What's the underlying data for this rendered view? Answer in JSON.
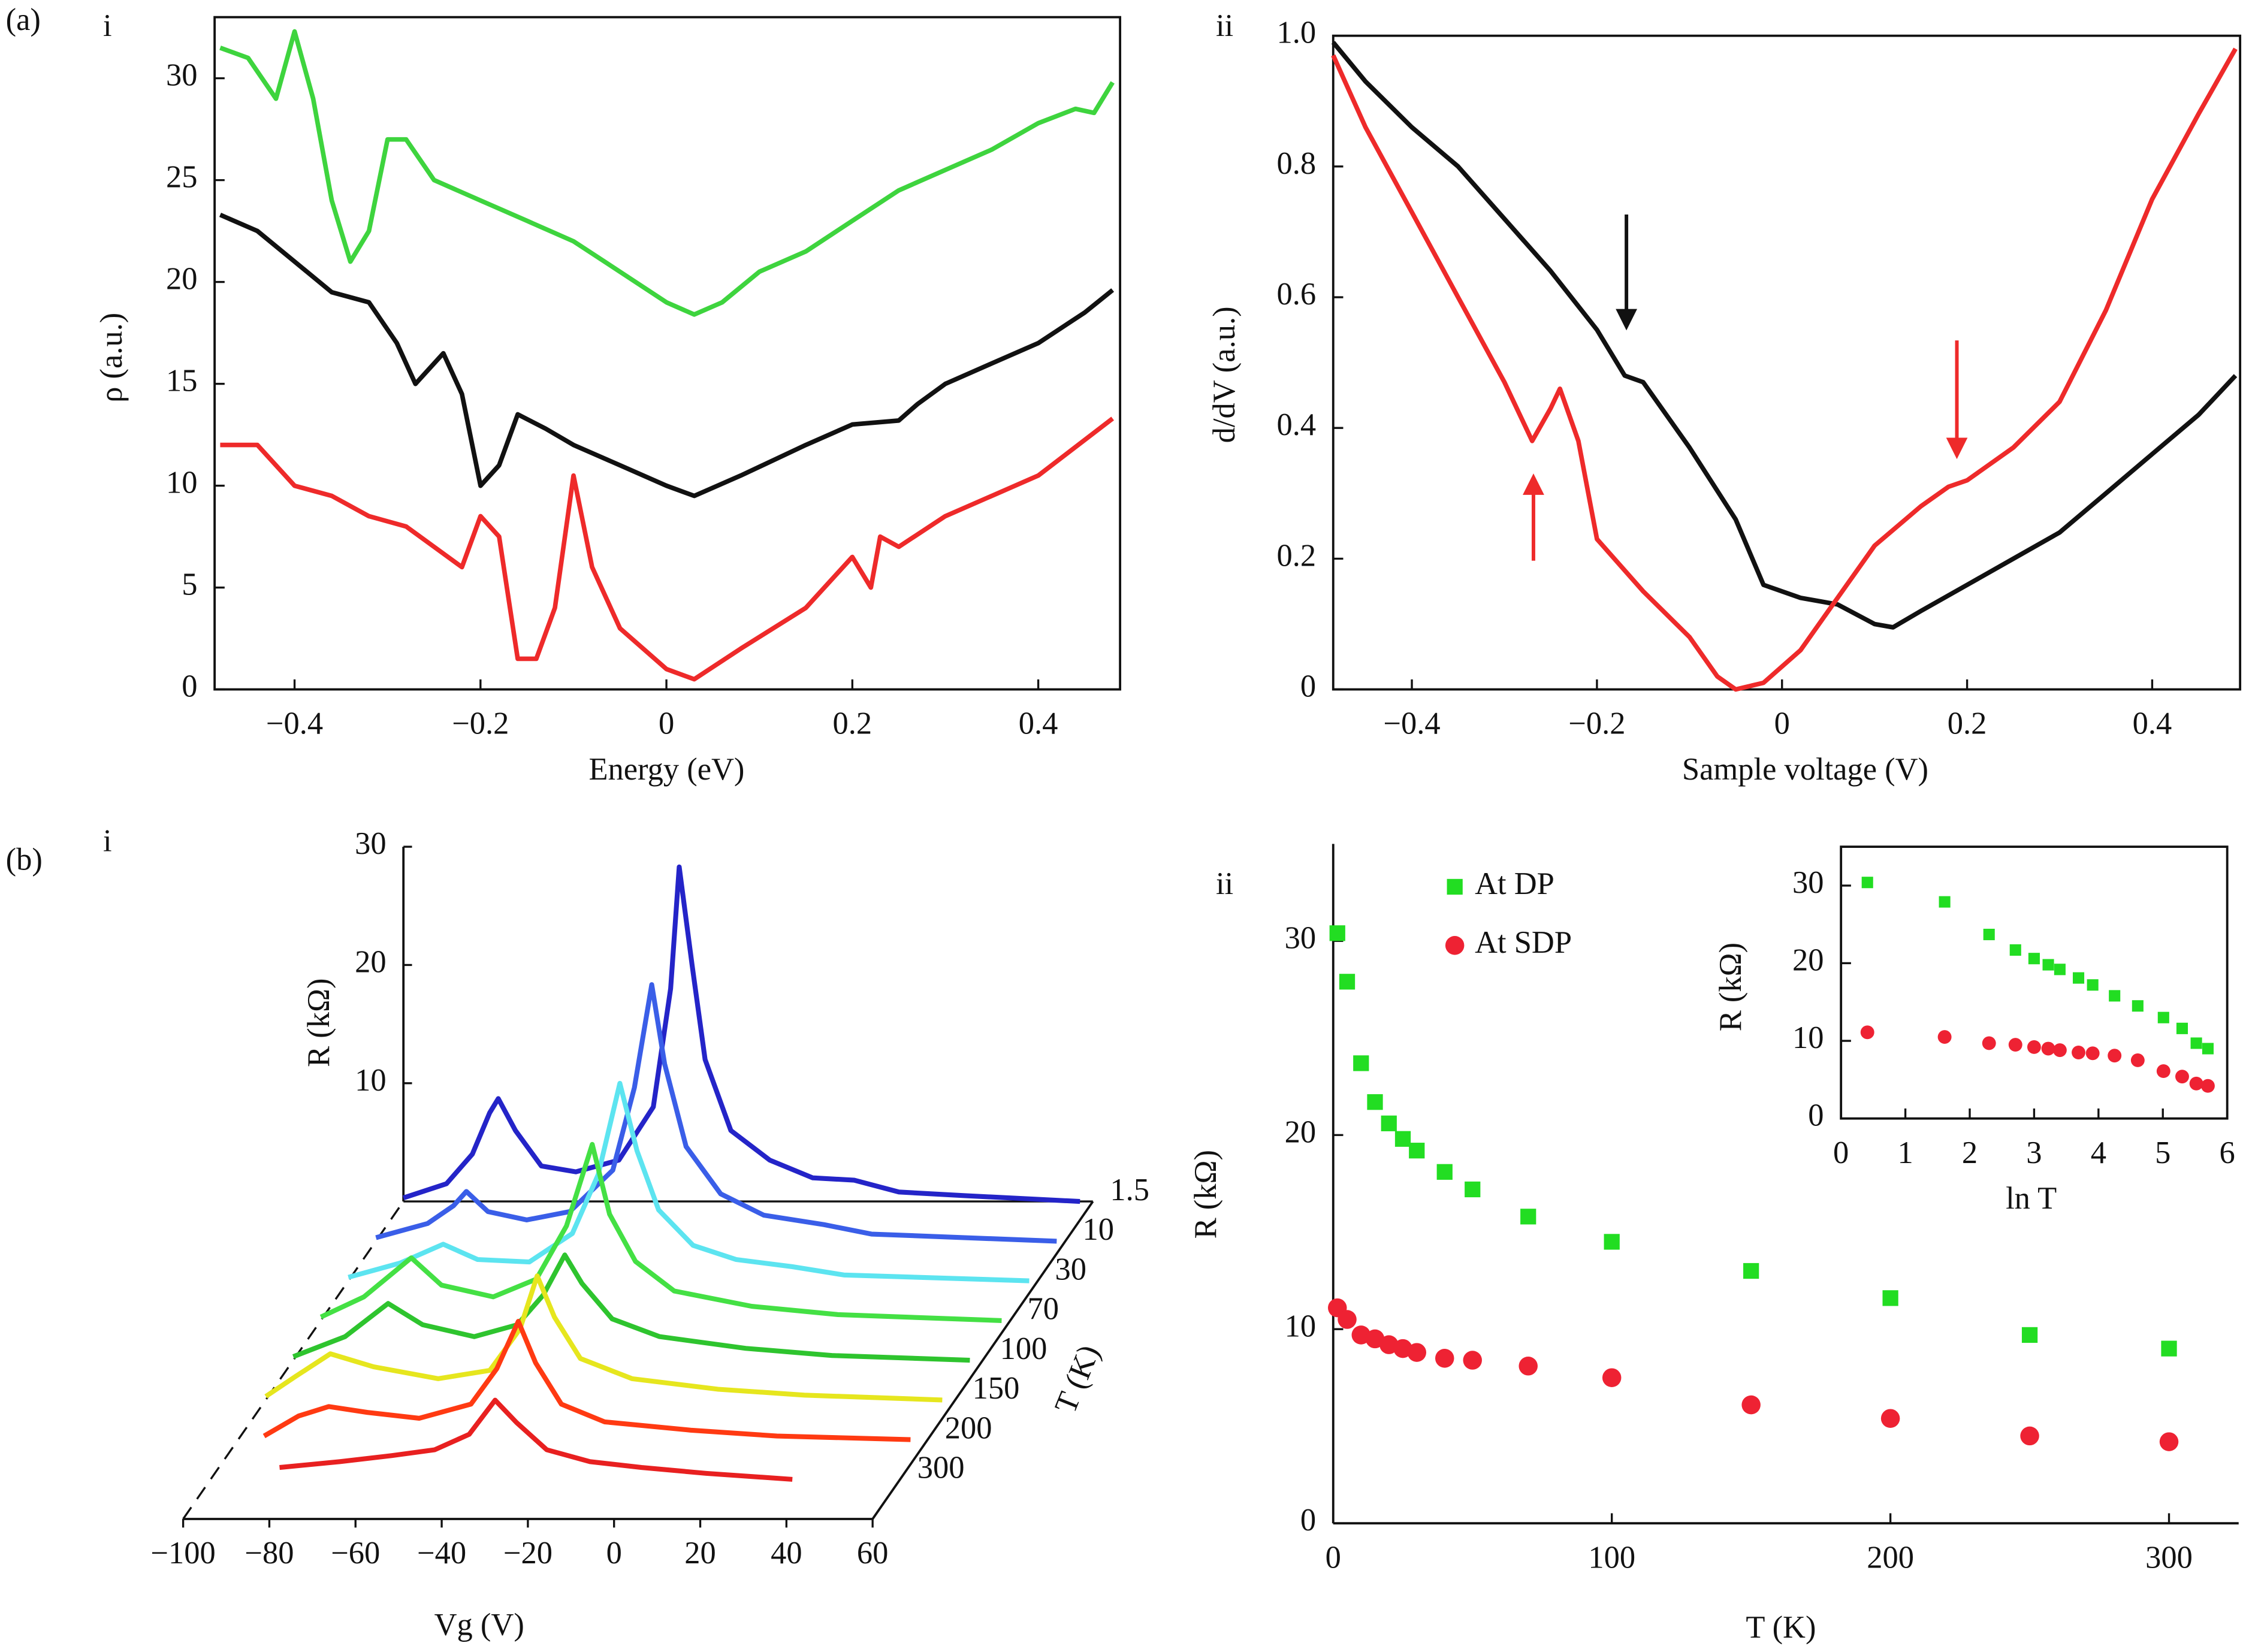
{
  "chart_data": [
    {
      "type": "line",
      "group": "(a)",
      "panel": "i",
      "xlabel": "Energy (eV)",
      "ylabel": "ρ (a.u.)",
      "frame": "box",
      "xlim": [
        -0.486,
        0.488
      ],
      "ylim": [
        0,
        33
      ],
      "xticks": [
        {
          "value": -0.4,
          "label": "−0.4"
        },
        {
          "value": -0.2,
          "label": "−0.2"
        },
        0,
        0.2,
        0.4
      ],
      "yticks": [
        0,
        5,
        10,
        15,
        20,
        25,
        30
      ],
      "series": [
        {
          "color": "#3ed43e",
          "x": [
            -0.48,
            -0.45,
            -0.42,
            -0.4,
            -0.38,
            -0.36,
            -0.34,
            -0.32,
            -0.3,
            -0.28,
            -0.25,
            -0.2,
            -0.15,
            -0.1,
            -0.05,
            0,
            0.03,
            0.06,
            0.1,
            0.15,
            0.2,
            0.25,
            0.3,
            0.35,
            0.4,
            0.44,
            0.46,
            0.48
          ],
          "values": [
            31.5,
            31,
            29,
            32.3,
            29,
            24,
            21,
            22.5,
            27,
            27,
            25,
            24,
            23,
            22,
            20.5,
            19,
            18.4,
            19,
            20.5,
            21.5,
            23,
            24.5,
            25.5,
            26.5,
            27.8,
            28.5,
            28.3,
            29.8
          ]
        },
        {
          "color": "#111111",
          "x": [
            -0.48,
            -0.44,
            -0.4,
            -0.36,
            -0.32,
            -0.29,
            -0.27,
            -0.24,
            -0.22,
            -0.2,
            -0.18,
            -0.16,
            -0.13,
            -0.1,
            -0.05,
            0,
            0.03,
            0.08,
            0.15,
            0.2,
            0.25,
            0.27,
            0.3,
            0.35,
            0.4,
            0.45,
            0.48
          ],
          "values": [
            23.3,
            22.5,
            21,
            19.5,
            19,
            17,
            15,
            16.5,
            14.5,
            10,
            11,
            13.5,
            12.8,
            12,
            11,
            10,
            9.5,
            10.5,
            12,
            13,
            13.2,
            14,
            15,
            16,
            17,
            18.5,
            19.6
          ]
        },
        {
          "color": "#ee2a2a",
          "x": [
            -0.48,
            -0.44,
            -0.4,
            -0.36,
            -0.32,
            -0.28,
            -0.25,
            -0.22,
            -0.2,
            -0.18,
            -0.16,
            -0.14,
            -0.12,
            -0.1,
            -0.08,
            -0.05,
            0,
            0.03,
            0.08,
            0.15,
            0.2,
            0.22,
            0.23,
            0.25,
            0.3,
            0.35,
            0.4,
            0.48
          ],
          "values": [
            12,
            12,
            10,
            9.5,
            8.5,
            8,
            7,
            6,
            8.5,
            7.5,
            1.5,
            1.5,
            4,
            10.5,
            6,
            3,
            1,
            0.5,
            2,
            4,
            6.5,
            5,
            7.5,
            7,
            8.5,
            9.5,
            10.5,
            13.3
          ]
        }
      ]
    },
    {
      "type": "line",
      "panel": "ii",
      "xlabel": "Sample voltage (V)",
      "ylabel": "d/dV (a.u.)",
      "frame": "box",
      "xlim": [
        -0.485,
        0.495
      ],
      "ylim": [
        0,
        1
      ],
      "xticks": [
        {
          "value": -0.4,
          "label": "−0.4"
        },
        {
          "value": -0.2,
          "label": "−0.2"
        },
        0,
        0.2,
        0.4
      ],
      "yticks": [
        0,
        0.2,
        0.4,
        0.6,
        0.8,
        {
          "value": 1,
          "label": "1.0"
        }
      ],
      "series": [
        {
          "color": "#111111",
          "x": [
            -0.485,
            -0.45,
            -0.4,
            -0.35,
            -0.3,
            -0.25,
            -0.2,
            -0.17,
            -0.15,
            -0.1,
            -0.05,
            -0.02,
            0.02,
            0.06,
            0.1,
            0.12,
            0.15,
            0.2,
            0.25,
            0.3,
            0.35,
            0.4,
            0.45,
            0.49
          ],
          "values": [
            0.99,
            0.93,
            0.86,
            0.8,
            0.72,
            0.64,
            0.55,
            0.48,
            0.47,
            0.37,
            0.26,
            0.16,
            0.14,
            0.13,
            0.1,
            0.095,
            0.12,
            0.16,
            0.2,
            0.24,
            0.3,
            0.36,
            0.42,
            0.48
          ]
        },
        {
          "color": "#ee2a2a",
          "x": [
            -0.485,
            -0.45,
            -0.4,
            -0.35,
            -0.3,
            -0.27,
            -0.25,
            -0.24,
            -0.22,
            -0.2,
            -0.15,
            -0.1,
            -0.07,
            -0.05,
            -0.02,
            0.02,
            0.06,
            0.1,
            0.15,
            0.18,
            0.2,
            0.25,
            0.3,
            0.35,
            0.4,
            0.45,
            0.49
          ],
          "values": [
            0.97,
            0.86,
            0.73,
            0.6,
            0.47,
            0.38,
            0.43,
            0.46,
            0.38,
            0.23,
            0.15,
            0.08,
            0.02,
            0,
            0.01,
            0.06,
            0.14,
            0.22,
            0.28,
            0.31,
            0.32,
            0.37,
            0.44,
            0.58,
            0.75,
            0.88,
            0.98
          ]
        }
      ]
    },
    {
      "type": "waterfall",
      "group": "(b)",
      "panel": "i",
      "xlabel": "Vg (V)",
      "ylabel": "R (kΩ)",
      "zlabel": "T (K)",
      "xlim": [
        -100,
        60
      ],
      "ylim": [
        0,
        30
      ],
      "xticks": [
        {
          "value": -100,
          "label": "−100"
        },
        {
          "value": -80,
          "label": "−80"
        },
        {
          "value": -60,
          "label": "−60"
        },
        {
          "value": -40,
          "label": "−40"
        },
        {
          "value": -20,
          "label": "−20"
        },
        0,
        20,
        40,
        60
      ],
      "yticks": [
        10,
        20,
        30
      ],
      "series": [
        {
          "name": "1.5",
          "color": "#2424c8",
          "x": [
            -100,
            -90,
            -84,
            -80,
            -78,
            -74,
            -68,
            -60,
            -50,
            -42,
            -38,
            -36,
            -33,
            -30,
            -24,
            -15,
            -5,
            4.6,
            15,
            30,
            57
          ],
          "values": [
            0.3,
            1.5,
            4,
            7.5,
            8.7,
            6,
            3,
            2.5,
            3.5,
            8,
            18,
            28.3,
            20,
            12,
            6,
            3.5,
            2,
            1.8,
            0.8,
            0.5,
            0
          ]
        },
        {
          "name": "10",
          "color": "#3a5ee8",
          "x": [
            -100,
            -88,
            -82,
            -79,
            -74,
            -65,
            -55,
            -45,
            -40,
            -36,
            -33,
            -28,
            -20,
            -10,
            4,
            15,
            58
          ],
          "values": [
            0.3,
            1.5,
            3,
            4.2,
            2.5,
            1.8,
            2.5,
            6,
            13,
            21.7,
            15,
            8,
            4,
            2.2,
            1.4,
            0.6,
            0
          ]
        },
        {
          "name": "30",
          "color": "#5ce4f0",
          "x": [
            -100,
            -88,
            -78,
            -70,
            -58,
            -48,
            -42,
            -37,
            -33,
            -28,
            -20,
            -10,
            3,
            15,
            58
          ],
          "values": [
            0.3,
            1.5,
            3.1,
            1.8,
            1.6,
            4,
            9,
            16.7,
            11,
            6,
            3,
            1.8,
            1.2,
            0.5,
            0
          ]
        },
        {
          "name": "70",
          "color": "#44e044",
          "x": [
            -100,
            -90,
            -79,
            -72,
            -60,
            -50,
            -43,
            -37,
            -33,
            -27,
            -18,
            0,
            20,
            58
          ],
          "values": [
            0.3,
            2,
            5.3,
            3,
            2,
            3.5,
            8,
            14.9,
            9,
            5,
            2.5,
            1.2,
            0.5,
            0
          ]
        },
        {
          "name": "100",
          "color": "#2ec42e",
          "x": [
            -100,
            -88,
            -78,
            -70,
            -58,
            -48,
            -42,
            -37,
            -33,
            -26,
            -15,
            5,
            25,
            57
          ],
          "values": [
            0.3,
            2,
            4.8,
            3,
            2,
            3,
            5.5,
            8.9,
            6.5,
            3.5,
            2,
            1,
            0.4,
            0
          ]
        },
        {
          "name": "150",
          "color": "#e6e61e",
          "x": [
            -100,
            -93,
            -85,
            -75,
            -60,
            -48,
            -41,
            -37,
            -33,
            -27,
            -15,
            5,
            25,
            57
          ],
          "values": [
            0.3,
            2,
            3.9,
            2.8,
            1.8,
            2.5,
            6,
            10.5,
            7,
            3.5,
            1.8,
            0.9,
            0.4,
            0
          ]
        },
        {
          "name": "200",
          "color": "#ff3a12",
          "x": [
            -94,
            -86,
            -79,
            -70,
            -58,
            -46,
            -40,
            -35,
            -31,
            -25,
            -15,
            5,
            25,
            56
          ],
          "values": [
            0.3,
            2,
            2.8,
            2.3,
            1.8,
            3,
            6,
            10,
            6.5,
            3,
            1.5,
            0.8,
            0.3,
            0
          ]
        },
        {
          "name": "300",
          "color": "#e82020",
          "x": [
            -84,
            -70,
            -58,
            -48,
            -40,
            -34,
            -29,
            -22,
            -12,
            0,
            15,
            35
          ],
          "values": [
            1,
            1.5,
            2,
            2.5,
            3.8,
            6.7,
            4.8,
            2.5,
            1.5,
            1,
            0.5,
            0
          ]
        }
      ]
    },
    {
      "type": "scatter",
      "panel": "ii",
      "xlabel": "T (K)",
      "ylabel": "R (kΩ)",
      "frame": "axes",
      "legend": "upper left",
      "xlim": [
        0,
        325
      ],
      "ylim": [
        0,
        35
      ],
      "xticks": [
        0,
        100,
        200,
        300
      ],
      "yticks": [
        0,
        10,
        20,
        30
      ],
      "series": [
        {
          "name": "At DP",
          "color": "#22dd22",
          "marker": "square",
          "x": [
            1.5,
            5,
            10,
            15,
            20,
            25,
            30,
            40,
            50,
            70,
            100,
            150,
            200,
            250,
            300
          ],
          "values": [
            30.4,
            27.9,
            23.7,
            21.7,
            20.6,
            19.8,
            19.2,
            18.1,
            17.2,
            15.8,
            14.5,
            13,
            11.6,
            9.7,
            9
          ]
        },
        {
          "name": "At SDP",
          "color": "#ee2233",
          "marker": "circle",
          "x": [
            1.5,
            5,
            10,
            15,
            20,
            25,
            30,
            40,
            50,
            70,
            100,
            150,
            200,
            250,
            300
          ],
          "values": [
            11.1,
            10.5,
            9.7,
            9.5,
            9.2,
            9,
            8.8,
            8.5,
            8.4,
            8.1,
            7.5,
            6.1,
            5.4,
            4.5,
            4.2
          ]
        }
      ]
    },
    {
      "type": "scatter",
      "xlabel": "ln T",
      "ylabel": "R (kΩ)",
      "frame": "box",
      "xlim": [
        0,
        6
      ],
      "ylim": [
        0,
        35
      ],
      "xticks": [
        0,
        1,
        2,
        3,
        4,
        5,
        6
      ],
      "yticks": [
        0,
        10,
        20,
        30
      ],
      "series": [
        {
          "color": "#22dd22",
          "marker": "square",
          "x": [
            0.41,
            1.61,
            2.3,
            2.71,
            3,
            3.22,
            3.4,
            3.69,
            3.91,
            4.25,
            4.61,
            5.01,
            5.3,
            5.52,
            5.7
          ],
          "values": [
            30.4,
            27.9,
            23.7,
            21.7,
            20.6,
            19.8,
            19.2,
            18.1,
            17.2,
            15.8,
            14.5,
            13,
            11.6,
            9.7,
            9
          ]
        },
        {
          "color": "#ee2233",
          "marker": "circle",
          "x": [
            0.41,
            1.61,
            2.3,
            2.71,
            3,
            3.22,
            3.4,
            3.69,
            3.91,
            4.25,
            4.61,
            5.01,
            5.3,
            5.52,
            5.7
          ],
          "values": [
            11.1,
            10.5,
            9.7,
            9.5,
            9.2,
            9,
            8.8,
            8.5,
            8.4,
            8.1,
            7.5,
            6.1,
            5.4,
            4.5,
            4.2
          ]
        }
      ]
    }
  ]
}
